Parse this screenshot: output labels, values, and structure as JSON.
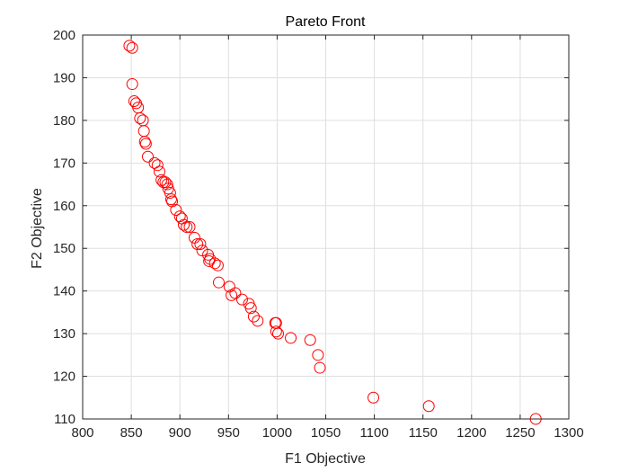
{
  "chart_data": {
    "type": "scatter",
    "title": "Pareto Front",
    "xlabel": "F1 Objective",
    "ylabel": "F2 Objective",
    "xlim": [
      800,
      1300
    ],
    "ylim": [
      110,
      200
    ],
    "xticks": [
      800,
      850,
      900,
      950,
      1000,
      1050,
      1100,
      1150,
      1200,
      1250,
      1300
    ],
    "yticks": [
      110,
      120,
      130,
      140,
      150,
      160,
      170,
      180,
      190,
      200
    ],
    "grid": true,
    "marker": "circle-open",
    "color": "#ff0000",
    "series": [
      {
        "x": [
          848,
          851,
          851,
          853,
          855,
          857,
          859,
          862,
          863,
          864,
          865,
          867,
          874,
          877,
          879,
          881,
          883,
          885,
          887,
          888,
          890,
          891,
          892,
          896,
          900,
          902,
          904,
          907,
          910,
          915,
          918,
          921,
          923,
          929,
          930,
          931,
          936,
          939,
          940,
          951,
          953,
          957,
          964,
          971,
          973,
          976,
          980,
          998,
          999,
          999,
          1001,
          1014,
          1034,
          1042,
          1044,
          1099,
          1156,
          1266
        ],
        "y": [
          197.5,
          197.0,
          188.5,
          184.5,
          184.0,
          183.0,
          180.5,
          180.0,
          177.5,
          175.0,
          174.5,
          171.5,
          170.0,
          169.5,
          168.0,
          166.0,
          165.5,
          165.5,
          165.0,
          164.0,
          163.0,
          161.5,
          161.0,
          159.0,
          157.5,
          157.0,
          155.5,
          155.0,
          155.0,
          152.5,
          151.0,
          151.0,
          149.5,
          148.5,
          147.0,
          147.5,
          146.5,
          146.0,
          142.0,
          141.0,
          139.0,
          139.5,
          138.0,
          137.0,
          136.0,
          134.0,
          133.0,
          132.5,
          132.5,
          130.5,
          130.0,
          129.0,
          128.5,
          125.0,
          122.0,
          115.0,
          113.0,
          110.0
        ]
      }
    ]
  }
}
